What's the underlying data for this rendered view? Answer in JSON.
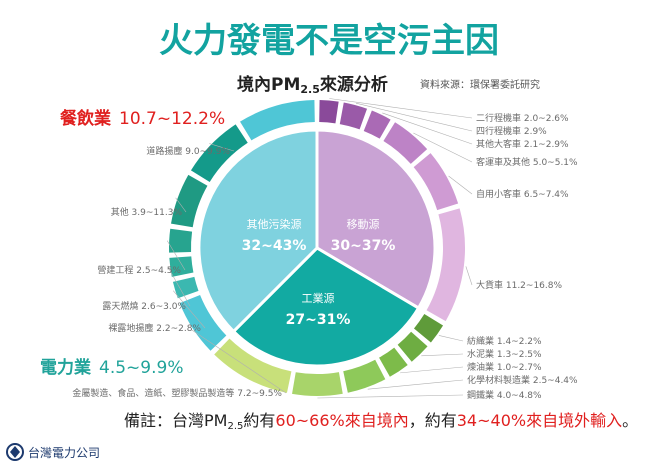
{
  "title": "火力發電不是空污主因",
  "subtitle_main": "境內PM",
  "subtitle_sub": "2.5",
  "subtitle_end": "來源分析",
  "source": "資料來源：環保署委託研究",
  "colors": {
    "title": "#12a3a0",
    "red": "#e0201f",
    "green_label": "#21a39a",
    "inner_other": "#7fd2df",
    "inner_mobile": "#c9a3d4",
    "inner_industry": "#12aaa2",
    "outer_mobile": [
      "#8a4a9a",
      "#9a5aa8",
      "#aa6ab5",
      "#bd83c6",
      "#cf9bd3",
      "#e0b6e0"
    ],
    "outer_industry": [
      "#5f9b3a",
      "#6ead42",
      "#7dbb4a",
      "#8ec95a",
      "#a8d46a",
      "#c8e07a"
    ],
    "outer_other": [
      "#4fc6d6",
      "#3bb8b0",
      "#2fae9c",
      "#27a48f",
      "#1f9a83",
      "#149a8a"
    ]
  },
  "highlights": {
    "food_label": "餐飲業",
    "food_range": "10.7~12.2%",
    "power_label": "電力業",
    "power_range": "4.5~9.9%"
  },
  "note": {
    "prefix": "備註：台灣PM",
    "sub": "2.5",
    "mid1": "約有",
    "red1": "60~66%來自境內",
    "mid2": "，約有",
    "red2": "34~40%來自境外輸入",
    "end": "。"
  },
  "logo_text": "台灣電力公司",
  "chart_data": {
    "type": "pie",
    "title": "境內PM2.5來源分析",
    "inner": [
      {
        "name": "移動源",
        "range": "30~37%",
        "value": 33.5
      },
      {
        "name": "工業源",
        "range": "27~31%",
        "value": 29
      },
      {
        "name": "其他污染源",
        "range": "32~43%",
        "value": 37.5
      }
    ],
    "outer": [
      {
        "group": "移動源",
        "name": "二行程機車",
        "range": "2.0~2.6%",
        "value": 2.3
      },
      {
        "group": "移動源",
        "name": "四行程機車",
        "range": "2.9%",
        "value": 2.9
      },
      {
        "group": "移動源",
        "name": "其他大客車",
        "range": "2.1~2.9%",
        "value": 2.5
      },
      {
        "group": "移動源",
        "name": "客運車及其他",
        "range": "5.0~5.1%",
        "value": 5.05
      },
      {
        "group": "移動源",
        "name": "自用小客車",
        "range": "6.5~7.4%",
        "value": 6.95
      },
      {
        "group": "移動源",
        "name": "大貨車",
        "range": "11.2~16.8%",
        "value": 14.0
      },
      {
        "group": "工業源",
        "name": "紡織業",
        "range": "1.4~2.2%",
        "value": 1.8
      },
      {
        "group": "工業源",
        "name": "水泥業",
        "range": "1.3~2.5%",
        "value": 1.9
      },
      {
        "group": "工業源",
        "name": "煉油業",
        "range": "1.0~2.7%",
        "value": 1.85
      },
      {
        "group": "工業源",
        "name": "化學材料製造業",
        "range": "2.5~4.4%",
        "value": 3.45
      },
      {
        "group": "工業源",
        "name": "鋼鐵業",
        "range": "4.0~4.8%",
        "value": 4.4
      },
      {
        "group": "工業源",
        "name": "電力業",
        "range": "4.5~9.9%",
        "value": 7.2
      },
      {
        "group": "其他污染源",
        "name": "金屬製造、食品、造紙、塑膠製品製造等",
        "range": "7.2~9.5%",
        "value": 8.35
      },
      {
        "group": "其他污染源",
        "name": "裸露地揚塵",
        "range": "2.2~2.8%",
        "value": 2.5
      },
      {
        "group": "其他污染源",
        "name": "露天燃燒",
        "range": "2.6~3.0%",
        "value": 2.8
      },
      {
        "group": "其他污染源",
        "name": "營建工程",
        "range": "2.5~4.5%",
        "value": 3.5
      },
      {
        "group": "其他污染源",
        "name": "其他",
        "range": "3.9~11.3%",
        "value": 7.6
      },
      {
        "group": "其他污染源",
        "name": "道路揚塵",
        "range": "9.0~9.9%",
        "value": 9.45
      },
      {
        "group": "其他污染源",
        "name": "餐飲業",
        "range": "10.7~12.2%",
        "value": 11.45
      }
    ]
  }
}
